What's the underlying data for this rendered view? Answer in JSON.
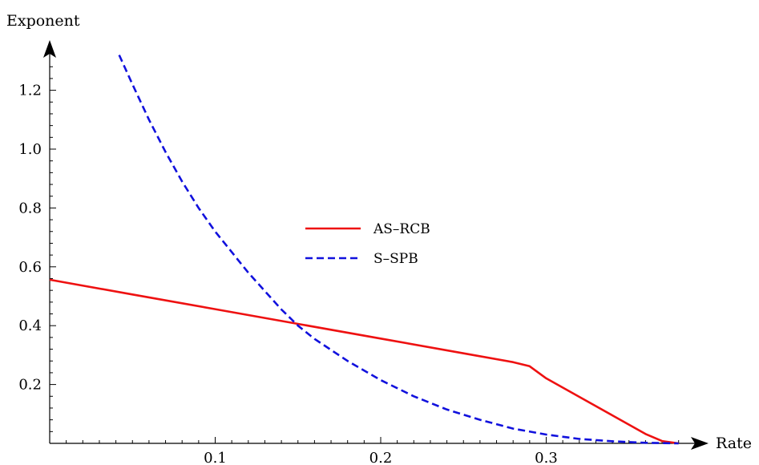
{
  "chart_data": {
    "type": "line",
    "title": "",
    "xlabel": "Rate",
    "ylabel": "Exponent",
    "xlim": [
      0,
      0.39
    ],
    "ylim": [
      0,
      1.35
    ],
    "x_ticks": [
      "0.1",
      "0.2",
      "0.3"
    ],
    "y_ticks": [
      "0.2",
      "0.4",
      "0.6",
      "0.8",
      "1.0",
      "1.2"
    ],
    "grid": false,
    "legend_position": "center",
    "series": [
      {
        "name": "AS–RCB",
        "color": "#ee1111",
        "style": "solid",
        "x": [
          0.0,
          0.05,
          0.1,
          0.15,
          0.2,
          0.25,
          0.28,
          0.29,
          0.3,
          0.32,
          0.34,
          0.36,
          0.37,
          0.38
        ],
        "y": [
          0.556,
          0.506,
          0.456,
          0.406,
          0.356,
          0.306,
          0.276,
          0.262,
          0.221,
          0.158,
          0.095,
          0.032,
          0.008,
          0.0
        ]
      },
      {
        "name": "S–SPB",
        "color": "#1111dd",
        "style": "dashed",
        "x": [
          0.042,
          0.05,
          0.06,
          0.07,
          0.08,
          0.09,
          0.1,
          0.12,
          0.14,
          0.15,
          0.16,
          0.18,
          0.2,
          0.22,
          0.24,
          0.26,
          0.28,
          0.3,
          0.32,
          0.34,
          0.36,
          0.38
        ],
        "y": [
          1.32,
          1.22,
          1.1,
          0.99,
          0.89,
          0.8,
          0.72,
          0.58,
          0.455,
          0.4,
          0.355,
          0.28,
          0.215,
          0.16,
          0.115,
          0.08,
          0.05,
          0.03,
          0.015,
          0.007,
          0.002,
          0.0
        ]
      }
    ]
  }
}
